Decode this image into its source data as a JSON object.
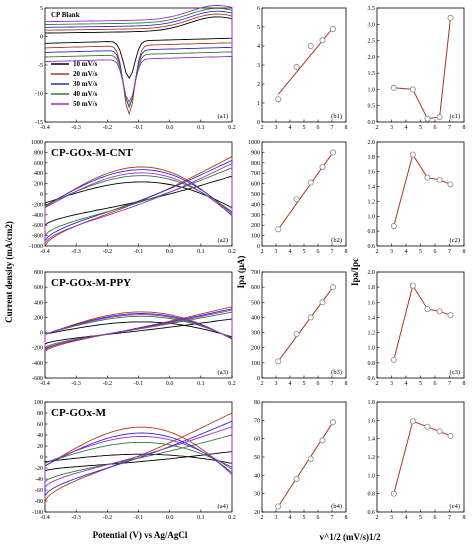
{
  "figure": {
    "y_label_cv": "Current density (mA/cm2)",
    "x_label_cv": "Potential (V) vs Ag/AgCl",
    "y_label_ipa": "Ipa (μA)",
    "y_label_ratio": "Ipa/Ipc",
    "x_label_sqrt_v": "v^1/2 (mV/s)1/2"
  },
  "colors": {
    "10": "#000000",
    "20": "#b23a1a",
    "30": "#2b2bd6",
    "40": "#2e7d32",
    "50": "#9b30c9",
    "fit": "#b2331a",
    "marker": "#888888"
  },
  "chart_data": [
    {
      "id": "a1",
      "type": "line",
      "title": "CP Blank",
      "panel_label": "(a1)",
      "xlim": [
        -0.4,
        0.2
      ],
      "ylim": [
        -15,
        5
      ],
      "xticks": [
        -0.4,
        -0.3,
        -0.2,
        -0.1,
        0.0,
        0.1,
        0.2
      ],
      "yticks": [
        -15,
        -10,
        -5,
        0,
        5
      ],
      "legend": [
        "10 mV/s",
        "20 mV/s",
        "30 mV/s",
        "40 mV/s",
        "50 mV/s"
      ],
      "series": [
        {
          "name": "10 mV/s",
          "peak": -6.5
        },
        {
          "name": "20 mV/s",
          "peak": -12
        },
        {
          "name": "30 mV/s",
          "peak": -10
        },
        {
          "name": "40 mV/s",
          "peak": -9
        },
        {
          "name": "50 mV/s",
          "peak": -7.5
        }
      ]
    },
    {
      "id": "b1",
      "type": "scatter",
      "panel_label": "(b1)",
      "xlim": [
        2,
        8
      ],
      "ylim": [
        0.0,
        6.0
      ],
      "xticks": [
        2,
        3,
        4,
        5,
        6,
        7,
        8
      ],
      "yticks": [
        0.0,
        1.0,
        2.0,
        3.0,
        4.0,
        5.0,
        6.0
      ],
      "x": [
        3.16,
        4.47,
        5.48,
        6.32,
        7.07
      ],
      "y": [
        1.2,
        2.9,
        4.0,
        4.3,
        4.9
      ],
      "fit": [
        [
          3.16,
          1.45
        ],
        [
          7.07,
          4.95
        ]
      ]
    },
    {
      "id": "c1",
      "type": "line",
      "panel_label": "(c1)",
      "xlim": [
        2,
        8
      ],
      "ylim": [
        0.0,
        3.5
      ],
      "xticks": [
        2,
        3,
        4,
        5,
        6,
        7,
        8
      ],
      "yticks": [
        0.0,
        0.5,
        1.0,
        1.5,
        2.0,
        2.5,
        3.0,
        3.5
      ],
      "x": [
        3.16,
        4.47,
        5.48,
        6.32,
        7.07
      ],
      "y": [
        1.05,
        1.0,
        0.1,
        0.15,
        3.2
      ]
    },
    {
      "id": "a2",
      "type": "line",
      "title": "CP-GOx-M-CNT",
      "panel_label": "(a2)",
      "xlim": [
        -0.4,
        0.2
      ],
      "ylim": [
        -1000,
        1000
      ],
      "xticks": [
        -0.4,
        -0.3,
        -0.2,
        -0.1,
        0.0,
        0.1,
        0.2
      ],
      "yticks": [
        -1000,
        -800,
        -600,
        -400,
        -200,
        0,
        200,
        400,
        600,
        800,
        1000
      ],
      "series": [
        {
          "name": "10 mV/s",
          "top_peak": 380,
          "bottom_start": -600
        },
        {
          "name": "20 mV/s",
          "top_peak": 800,
          "bottom_start": -1000
        },
        {
          "name": "30 mV/s",
          "top_peak": 720,
          "bottom_start": -900
        },
        {
          "name": "40 mV/s",
          "top_peak": 560,
          "bottom_start": -800
        },
        {
          "name": "50 mV/s",
          "top_peak": 650,
          "bottom_start": -950
        }
      ]
    },
    {
      "id": "b2",
      "type": "scatter",
      "panel_label": "(b2)",
      "xlim": [
        2,
        8
      ],
      "ylim": [
        0,
        1000
      ],
      "xticks": [
        2,
        3,
        4,
        5,
        6,
        7,
        8
      ],
      "yticks": [
        0,
        100,
        200,
        300,
        400,
        500,
        600,
        700,
        800,
        900,
        1000
      ],
      "x": [
        3.16,
        4.47,
        5.48,
        6.32,
        7.07
      ],
      "y": [
        160,
        450,
        610,
        760,
        900
      ],
      "fit": [
        [
          3.16,
          160
        ],
        [
          7.07,
          900
        ]
      ]
    },
    {
      "id": "c2",
      "type": "line",
      "panel_label": "(c2)",
      "xlim": [
        2,
        8
      ],
      "ylim": [
        0.6,
        2.0
      ],
      "xticks": [
        2,
        3,
        4,
        5,
        6,
        7,
        8
      ],
      "yticks": [
        0.6,
        0.8,
        1.0,
        1.2,
        1.4,
        1.6,
        1.8,
        2.0
      ],
      "x": [
        3.16,
        4.47,
        5.48,
        6.32,
        7.07
      ],
      "y": [
        0.87,
        1.83,
        1.52,
        1.49,
        1.43
      ]
    },
    {
      "id": "a3",
      "type": "line",
      "title": "CP-GOx-M-PPY",
      "panel_label": "(a3)",
      "xlim": [
        -0.4,
        0.2
      ],
      "ylim": [
        -600,
        800
      ],
      "xticks": [
        -0.4,
        -0.3,
        -0.2,
        -0.1,
        0.0,
        0.1,
        0.2
      ],
      "yticks": [
        -600,
        -400,
        -200,
        0,
        200,
        400,
        600,
        800
      ],
      "series": [
        {
          "name": "10 mV/s",
          "top_peak": 200,
          "bottom_start": -150
        },
        {
          "name": "20 mV/s",
          "top_peak": 380,
          "bottom_start": -250
        },
        {
          "name": "30 mV/s",
          "top_peak": 350,
          "bottom_start": -230
        },
        {
          "name": "40 mV/s",
          "top_peak": 300,
          "bottom_start": -200
        },
        {
          "name": "50 mV/s",
          "top_peak": 330,
          "bottom_start": -220
        }
      ]
    },
    {
      "id": "b3",
      "type": "scatter",
      "panel_label": "(b3)",
      "xlim": [
        2,
        8
      ],
      "ylim": [
        0,
        700
      ],
      "xticks": [
        2,
        3,
        4,
        5,
        6,
        7,
        8
      ],
      "yticks": [
        0,
        100,
        200,
        300,
        400,
        500,
        600,
        700
      ],
      "x": [
        3.16,
        4.47,
        5.48,
        6.32,
        7.07
      ],
      "y": [
        110,
        290,
        400,
        500,
        600
      ],
      "fit": [
        [
          3.16,
          110
        ],
        [
          7.07,
          600
        ]
      ]
    },
    {
      "id": "c3",
      "type": "line",
      "panel_label": "(c3)",
      "xlim": [
        2,
        8
      ],
      "ylim": [
        0.6,
        2.0
      ],
      "xticks": [
        2,
        3,
        4,
        5,
        6,
        7,
        8
      ],
      "yticks": [
        0.6,
        0.8,
        1.0,
        1.2,
        1.4,
        1.6,
        1.8,
        2.0
      ],
      "x": [
        3.16,
        4.47,
        5.48,
        6.32,
        7.07
      ],
      "y": [
        0.84,
        1.82,
        1.51,
        1.48,
        1.43
      ]
    },
    {
      "id": "a4",
      "type": "line",
      "title": "CP-GOx-M",
      "panel_label": "(a4)",
      "xlim": [
        -0.4,
        0.2
      ],
      "ylim": [
        -100,
        100
      ],
      "xticks": [
        -0.4,
        -0.3,
        -0.2,
        -0.1,
        0.0,
        0.1,
        0.2
      ],
      "yticks": [
        -100,
        -80,
        -60,
        -40,
        -20,
        0,
        20,
        40,
        60,
        80,
        100
      ],
      "series": [
        {
          "name": "10 mV/s",
          "top_end": 10,
          "bottom_min": -25
        },
        {
          "name": "20 mV/s",
          "top_end": 80,
          "bottom_min": -80
        },
        {
          "name": "30 mV/s",
          "top_end": 65,
          "bottom_min": -70
        },
        {
          "name": "40 mV/s",
          "top_end": 40,
          "bottom_min": -45
        },
        {
          "name": "50 mV/s",
          "top_end": 55,
          "bottom_min": -55
        }
      ]
    },
    {
      "id": "b4",
      "type": "scatter",
      "panel_label": "(b4)",
      "xlim": [
        2,
        8
      ],
      "ylim": [
        20,
        80
      ],
      "xticks": [
        2,
        3,
        4,
        5,
        6,
        7,
        8
      ],
      "yticks": [
        20,
        30,
        40,
        50,
        60,
        70,
        80
      ],
      "x": [
        3.16,
        4.47,
        5.48,
        6.32,
        7.07
      ],
      "y": [
        23,
        38,
        49,
        59,
        69
      ],
      "fit": [
        [
          3.16,
          23
        ],
        [
          7.07,
          69
        ]
      ]
    },
    {
      "id": "c4",
      "type": "line",
      "panel_label": "(c4)",
      "xlim": [
        2,
        8
      ],
      "ylim": [
        0.6,
        1.8
      ],
      "xticks": [
        2,
        3,
        4,
        5,
        6,
        7,
        8
      ],
      "yticks": [
        0.6,
        0.8,
        1.0,
        1.2,
        1.4,
        1.6,
        1.8
      ],
      "x": [
        3.16,
        4.47,
        5.48,
        6.32,
        7.07
      ],
      "y": [
        0.8,
        1.59,
        1.53,
        1.48,
        1.43
      ]
    }
  ]
}
